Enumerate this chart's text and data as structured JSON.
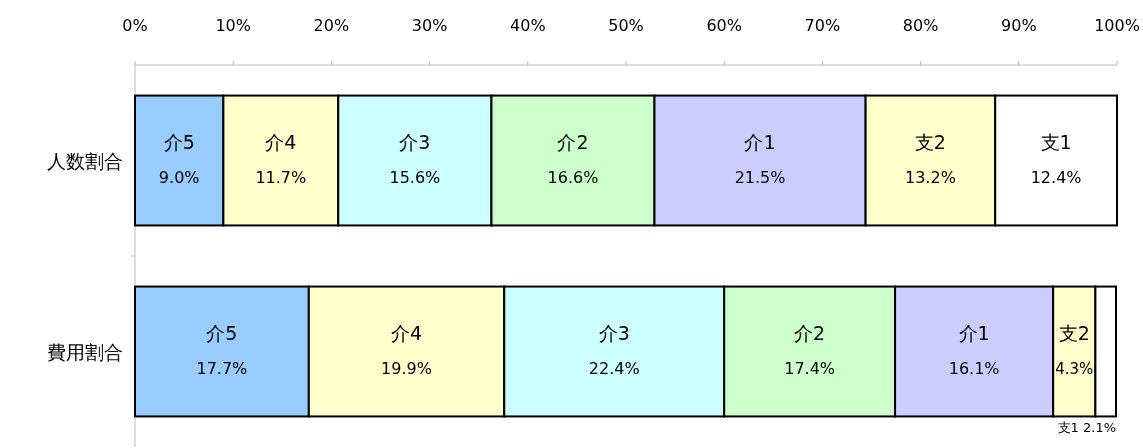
{
  "chart_data": {
    "type": "bar",
    "orientation": "horizontal",
    "stacked": true,
    "categories": [
      "人数割合",
      "費用割合"
    ],
    "xlim": [
      0,
      100
    ],
    "xticks": [
      {
        "value": 0,
        "label": "0%"
      },
      {
        "value": 10,
        "label": "10%"
      },
      {
        "value": 20,
        "label": "20%"
      },
      {
        "value": 30,
        "label": "30%"
      },
      {
        "value": 40,
        "label": "40%"
      },
      {
        "value": 50,
        "label": "50%"
      },
      {
        "value": 60,
        "label": "60%"
      },
      {
        "value": 70,
        "label": "70%"
      },
      {
        "value": 80,
        "label": "80%"
      },
      {
        "value": 90,
        "label": "90%"
      },
      {
        "value": 100,
        "label": "100%"
      }
    ],
    "series": [
      {
        "name": "介5",
        "color": "#99ccff",
        "values": [
          9.0,
          17.7
        ],
        "value_labels": [
          "9.0%",
          "17.7%"
        ]
      },
      {
        "name": "介4",
        "color": "#ffffcc",
        "values": [
          11.7,
          19.9
        ],
        "value_labels": [
          "11.7%",
          "19.9%"
        ]
      },
      {
        "name": "介3",
        "color": "#ccffff",
        "values": [
          15.6,
          22.4
        ],
        "value_labels": [
          "15.6%",
          "22.4%"
        ]
      },
      {
        "name": "介2",
        "color": "#ccffcc",
        "values": [
          16.6,
          17.4
        ],
        "value_labels": [
          "16.6%",
          "17.4%"
        ]
      },
      {
        "name": "介1",
        "color": "#ccccff",
        "values": [
          21.5,
          16.1
        ],
        "value_labels": [
          "21.5%",
          "16.1%"
        ]
      },
      {
        "name": "支2",
        "color": "#ffffcc",
        "values": [
          13.2,
          4.3
        ],
        "value_labels": [
          "13.2%",
          "4.3%"
        ]
      },
      {
        "name": "支1",
        "color": "#ffffff",
        "values": [
          12.4,
          2.1
        ],
        "value_labels": [
          "12.4%",
          "2.1%"
        ]
      }
    ]
  }
}
